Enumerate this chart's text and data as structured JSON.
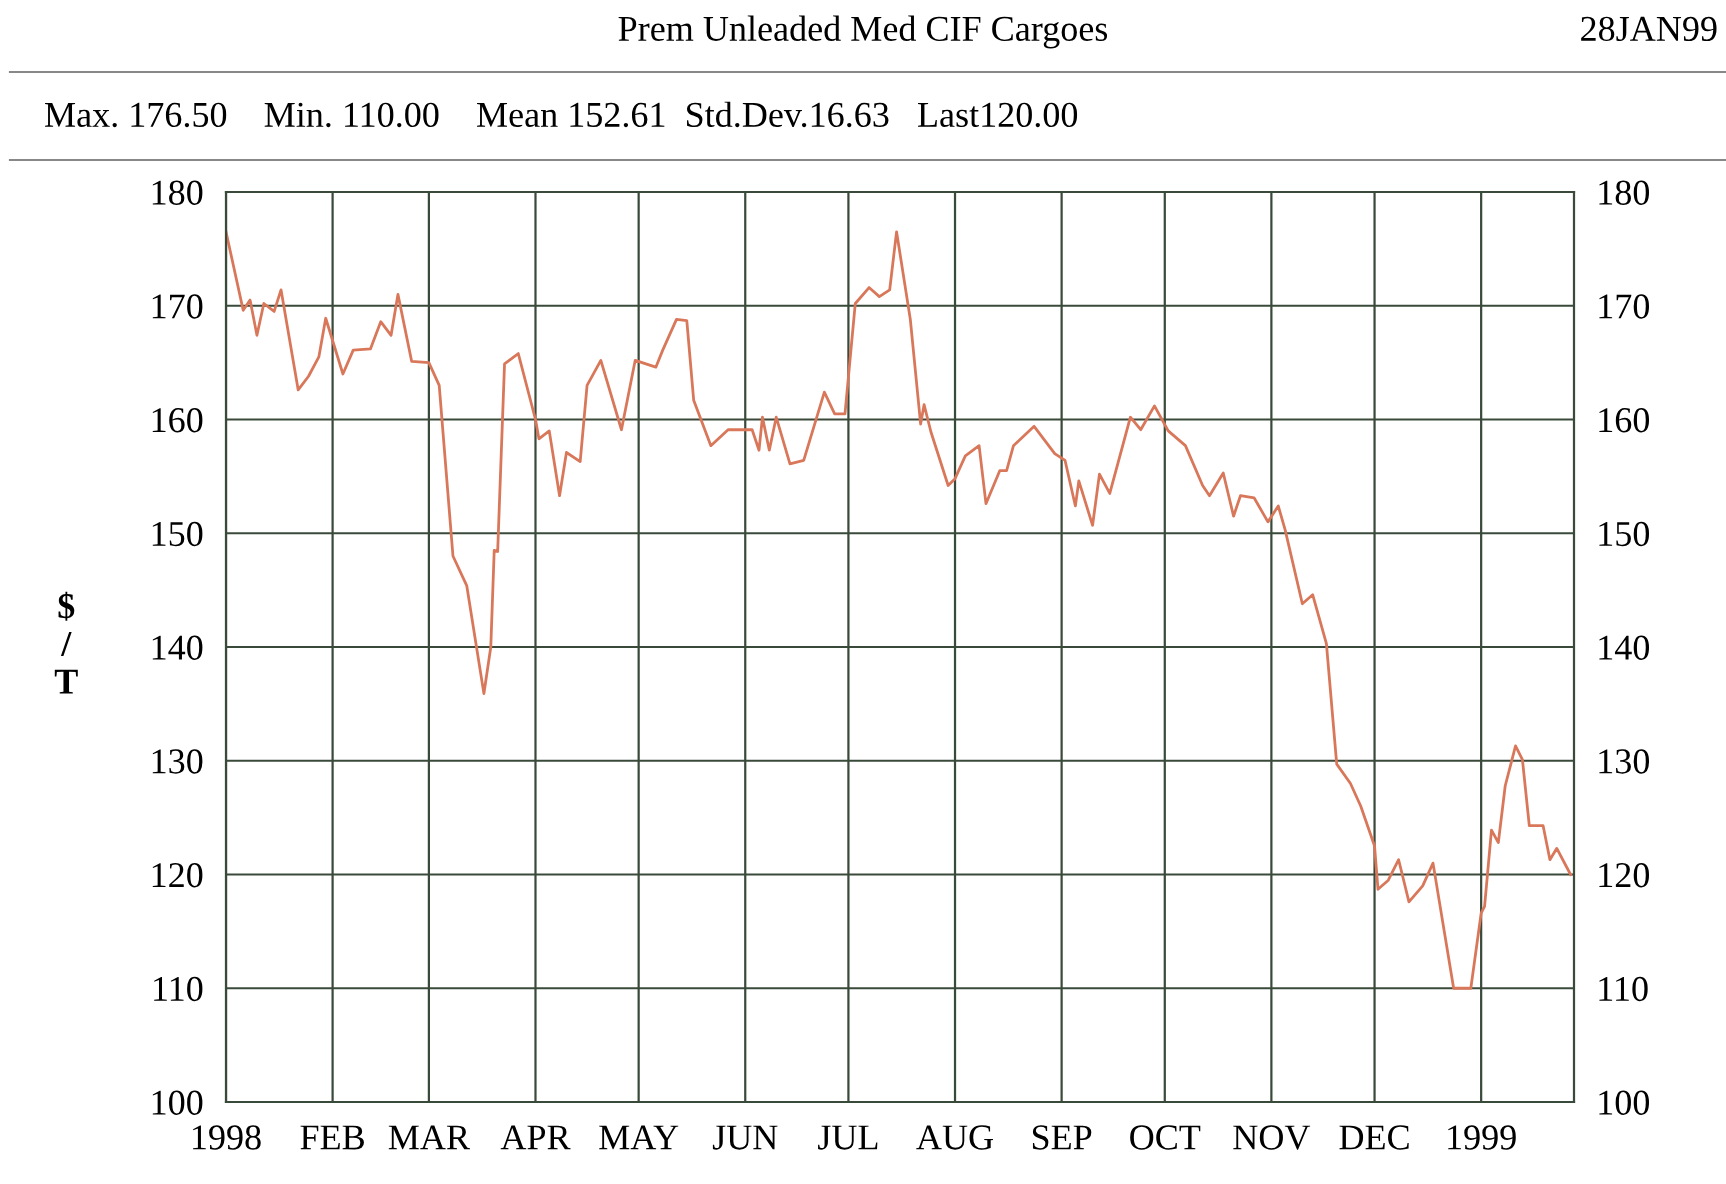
{
  "chart_data": {
    "type": "line",
    "title": "Prem Unleaded Med CIF Cargoes",
    "subtitle": "Max. 176.50    Min. 110.00    Mean 152.61  Std.Dev.16.63   Last120.00",
    "annotations": [
      "28JAN99"
    ],
    "ylabel": "$\n/\nT",
    "x": [
      "1998-01-01",
      "1998-01-06",
      "1998-01-08",
      "1998-01-10",
      "1998-01-12",
      "1998-01-15",
      "1998-01-17",
      "1998-01-22",
      "1998-01-25",
      "1998-01-28",
      "1998-01-30",
      "1998-02-04",
      "1998-02-07",
      "1998-02-12",
      "1998-02-15",
      "1998-02-18",
      "1998-02-20",
      "1998-02-24",
      "1998-03-01",
      "1998-03-04",
      "1998-03-08",
      "1998-03-12",
      "1998-03-17",
      "1998-03-19",
      "1998-03-20",
      "1998-03-21",
      "1998-03-23",
      "1998-03-27",
      "1998-04-01",
      "1998-04-02",
      "1998-04-05",
      "1998-04-08",
      "1998-04-10",
      "1998-04-14",
      "1998-04-16",
      "1998-04-20",
      "1998-04-26",
      "1998-04-30",
      "1998-05-06",
      "1998-05-08",
      "1998-05-12",
      "1998-05-15",
      "1998-05-17",
      "1998-05-22",
      "1998-05-27",
      "1998-06-03",
      "1998-06-05",
      "1998-06-06",
      "1998-06-08",
      "1998-06-10",
      "1998-06-14",
      "1998-06-18",
      "1998-06-24",
      "1998-06-27",
      "1998-06-30",
      "1998-07-03",
      "1998-07-07",
      "1998-07-10",
      "1998-07-13",
      "1998-07-15",
      "1998-07-19",
      "1998-07-22",
      "1998-07-23",
      "1998-07-25",
      "1998-07-30",
      "1998-08-01",
      "1998-08-04",
      "1998-08-08",
      "1998-08-10",
      "1998-08-14",
      "1998-08-16",
      "1998-08-18",
      "1998-08-24",
      "1998-08-30",
      "1998-09-02",
      "1998-09-05",
      "1998-09-06",
      "1998-09-10",
      "1998-09-12",
      "1998-09-15",
      "1998-09-21",
      "1998-09-24",
      "1998-09-28",
      "1998-10-02",
      "1998-10-07",
      "1998-10-12",
      "1998-10-14",
      "1998-10-18",
      "1998-10-21",
      "1998-10-23",
      "1998-10-27",
      "1998-10-31",
      "1998-11-03",
      "1998-11-05",
      "1998-11-10",
      "1998-11-13",
      "1998-11-17",
      "1998-11-20",
      "1998-11-24",
      "1998-11-27",
      "1998-12-01",
      "1998-12-02",
      "1998-12-05",
      "1998-12-08",
      "1998-12-11",
      "1998-12-15",
      "1998-12-18",
      "1998-12-24",
      "1998-12-29",
      "1999-01-01",
      "1999-01-02",
      "1999-01-04",
      "1999-01-06",
      "1999-01-08",
      "1999-01-11",
      "1999-01-13",
      "1999-01-15",
      "1999-01-19",
      "1999-01-21",
      "1999-01-23",
      "1999-01-27"
    ],
    "series": [
      {
        "color": "#d9775a",
        "values": [
          176.5,
          169.6,
          170.5,
          167.4,
          170.2,
          169.5,
          171.4,
          162.6,
          163.8,
          165.5,
          168.9,
          164.0,
          166.1,
          166.2,
          168.6,
          167.4,
          171.0,
          165.1,
          165.0,
          163.0,
          148.0,
          145.4,
          135.9,
          140.0,
          148.5,
          148.4,
          164.9,
          165.8,
          160.0,
          158.3,
          159.0,
          153.3,
          157.1,
          156.3,
          163.0,
          165.2,
          159.1,
          165.2,
          164.6,
          166.1,
          168.8,
          168.7,
          161.7,
          157.7,
          159.1,
          159.1,
          157.3,
          160.2,
          157.3,
          160.2,
          156.1,
          156.4,
          162.4,
          160.5,
          160.5,
          170.2,
          171.6,
          170.8,
          171.4,
          176.5,
          168.8,
          159.6,
          161.3,
          158.9,
          154.2,
          154.8,
          156.8,
          157.7,
          152.6,
          155.5,
          155.5,
          157.7,
          159.4,
          157.0,
          156.4,
          152.4,
          154.6,
          150.7,
          155.2,
          153.5,
          160.2,
          159.1,
          161.2,
          159.0,
          157.7,
          154.2,
          153.3,
          155.3,
          151.5,
          153.3,
          153.1,
          151.0,
          152.4,
          150.3,
          143.8,
          144.6,
          140.3,
          129.7,
          128.0,
          126.0,
          122.5,
          118.7,
          119.5,
          121.3,
          117.6,
          119.0,
          121.0,
          110.0,
          110.0,
          116.6,
          117.2,
          123.9,
          122.8,
          127.8,
          131.3,
          130.1,
          124.3,
          124.3,
          121.3,
          122.3,
          120.0
        ]
      }
    ],
    "xlim": [
      "1998-01-01",
      "1999-01-28"
    ],
    "xticks": [
      {
        "value": "1998-01-01",
        "label": "1998"
      },
      {
        "value": "1998-02-01",
        "label": "FEB"
      },
      {
        "value": "1998-03-01",
        "label": "MAR"
      },
      {
        "value": "1998-04-01",
        "label": "APR"
      },
      {
        "value": "1998-05-01",
        "label": "MAY"
      },
      {
        "value": "1998-06-01",
        "label": "JUN"
      },
      {
        "value": "1998-07-01",
        "label": "JUL"
      },
      {
        "value": "1998-08-01",
        "label": "AUG"
      },
      {
        "value": "1998-09-01",
        "label": "SEP"
      },
      {
        "value": "1998-10-01",
        "label": "OCT"
      },
      {
        "value": "1998-11-01",
        "label": "NOV"
      },
      {
        "value": "1998-12-01",
        "label": "DEC"
      },
      {
        "value": "1999-01-01",
        "label": "1999"
      }
    ],
    "ylim": [
      100,
      180
    ],
    "yticks": [
      100,
      110,
      120,
      130,
      140,
      150,
      160,
      170,
      180
    ],
    "y2lim": [
      100,
      180
    ],
    "y2ticks": [
      100,
      110,
      120,
      130,
      140,
      150,
      160,
      170,
      180
    ],
    "grid": true,
    "line_style": "solid",
    "marker": "none"
  }
}
